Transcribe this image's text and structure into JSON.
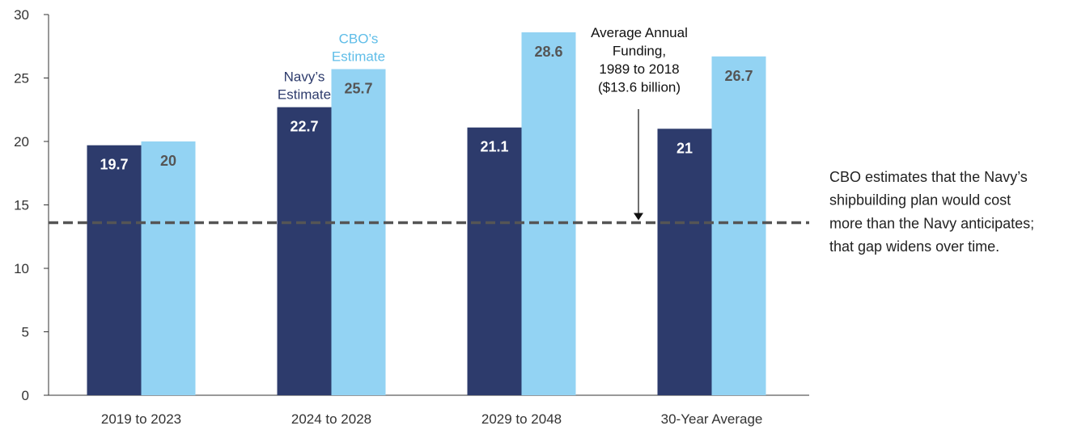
{
  "chart_data": {
    "type": "bar",
    "categories": [
      "2019 to 2023",
      "2024 to 2028",
      "2029 to 2048",
      "30-Year Average"
    ],
    "series": [
      {
        "name": "Navy’s Estimate",
        "color": "#2d3b6c",
        "values": [
          19.7,
          22.7,
          21.1,
          21.0
        ]
      },
      {
        "name": "CBO’s Estimate",
        "color": "#93d3f3",
        "values": [
          20.0,
          25.7,
          28.6,
          26.7
        ]
      }
    ],
    "ylim": [
      0,
      30
    ],
    "yticks": [
      0,
      5,
      10,
      15,
      20,
      25,
      30
    ],
    "reference_line": {
      "value": 13.6,
      "color": "#555555",
      "dashed": true
    },
    "annotation": [
      "Average Annual",
      "Funding,",
      "1989 to 2018",
      "($13.6 billion)"
    ],
    "note": [
      "CBO estimates that the Navy’s",
      "shipbuilding plan would cost",
      "more than the Navy anticipates;",
      "that gap widens over time."
    ]
  }
}
